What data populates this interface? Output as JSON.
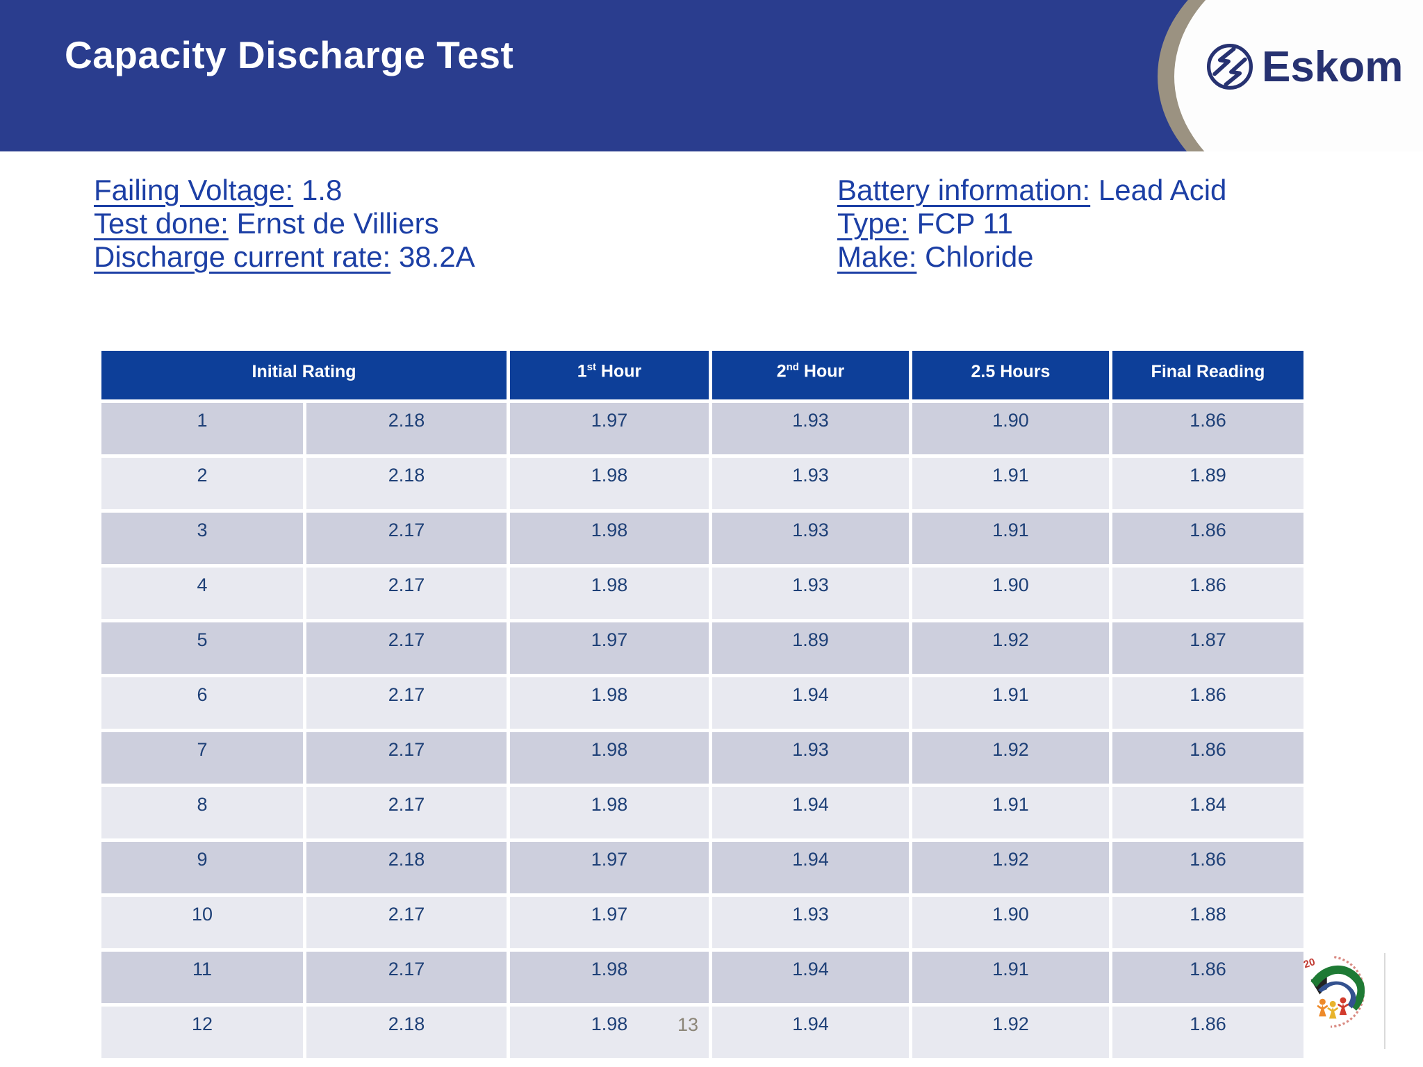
{
  "slide": {
    "title": "Capacity Discharge Test",
    "page_number": "13"
  },
  "header_logo": {
    "brand": "Eskom",
    "emblem_icon": "eskom-rotary-emblem-icon"
  },
  "info_left": {
    "lines": [
      {
        "label": "Failing Voltage:",
        "value": "1.8"
      },
      {
        "label": "Test done:",
        "value": "Ernst de Villiers"
      },
      {
        "label": "Discharge current rate:",
        "value": "38.2A"
      }
    ]
  },
  "info_right": {
    "lines": [
      {
        "label": "Battery information:",
        "value": "Lead Acid"
      },
      {
        "label": "Type:",
        "value": "FCP 11"
      },
      {
        "label": "Make:",
        "value": "Chloride"
      }
    ]
  },
  "table": {
    "type": "table",
    "header": {
      "initial_rating": "Initial Rating",
      "hour1": {
        "num": "1",
        "sup": "st",
        "rest": " Hour"
      },
      "hour2": {
        "num": "2",
        "sup": "nd",
        "rest": " Hour"
      },
      "hours25": "2.5 Hours",
      "final": "Final Reading"
    },
    "rows": [
      [
        "1",
        "2.18",
        "1.97",
        "1.93",
        "1.90",
        "1.86"
      ],
      [
        "2",
        "2.18",
        "1.98",
        "1.93",
        "1.91",
        "1.89"
      ],
      [
        "3",
        "2.17",
        "1.98",
        "1.93",
        "1.91",
        "1.86"
      ],
      [
        "4",
        "2.17",
        "1.98",
        "1.93",
        "1.90",
        "1.86"
      ],
      [
        "5",
        "2.17",
        "1.97",
        "1.89",
        "1.92",
        "1.87"
      ],
      [
        "6",
        "2.17",
        "1.98",
        "1.94",
        "1.91",
        "1.86"
      ],
      [
        "7",
        "2.17",
        "1.98",
        "1.93",
        "1.92",
        "1.86"
      ],
      [
        "8",
        "2.17",
        "1.98",
        "1.94",
        "1.91",
        "1.84"
      ],
      [
        "9",
        "2.18",
        "1.97",
        "1.94",
        "1.92",
        "1.86"
      ],
      [
        "10",
        "2.17",
        "1.97",
        "1.93",
        "1.90",
        "1.88"
      ],
      [
        "11",
        "2.17",
        "1.98",
        "1.94",
        "1.91",
        "1.86"
      ],
      [
        "12",
        "2.18",
        "1.98",
        "1.94",
        "1.92",
        "1.86"
      ]
    ]
  },
  "footer": {
    "emblem_icon": "20-years-of-freedom-emblem-icon"
  },
  "colors": {
    "banner_blue": "#2a3d8e",
    "table_header_blue": "#0d3f99",
    "row_dark": "#cdcfdd",
    "row_light": "#e8e9f0",
    "info_text_blue": "#1c3fa5",
    "table_text_blue": "#1e4077",
    "eskom_navy": "#273271",
    "arc_tan": "#9b9281",
    "page_number_gray": "#8b8577"
  }
}
